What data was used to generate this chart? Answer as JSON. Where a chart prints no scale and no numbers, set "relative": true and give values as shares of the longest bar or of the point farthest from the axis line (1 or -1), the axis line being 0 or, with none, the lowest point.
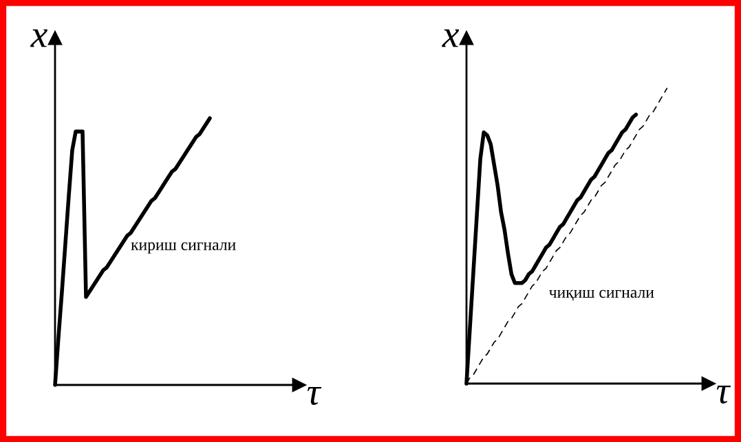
{
  "chart_data": [
    {
      "type": "line",
      "relative": true,
      "xlabel": "τ",
      "ylabel": "x",
      "categories": [
        null,
        null,
        null,
        null,
        null,
        null,
        null,
        null,
        null,
        null,
        null,
        null,
        null,
        null,
        null,
        null,
        null,
        null,
        null,
        null,
        null,
        null,
        null,
        null,
        null,
        null,
        null,
        null,
        null,
        null,
        null,
        null,
        null,
        null,
        null,
        null,
        null,
        null,
        null,
        null,
        null,
        null,
        null,
        null,
        null,
        null,
        null,
        null,
        null,
        null,
        null,
        null,
        null,
        null,
        null,
        null,
        null,
        null,
        null,
        null,
        null,
        null,
        null,
        null,
        null,
        null,
        null,
        null,
        null,
        null,
        null,
        null
      ],
      "series": [
        {
          "name": "кириш сигнали",
          "color": "#000000",
          "line_style": "solid",
          "values": [
            0,
            0.18,
            0.35,
            0.53,
            0.71,
            0.88,
            0.95,
            0.95,
            0.95,
            0.33,
            0.35,
            0.37,
            0.39,
            0.41,
            0.43,
            0.44,
            0.46,
            0.48,
            0.5,
            0.52,
            0.54,
            0.56,
            0.57,
            0.59,
            0.61,
            0.63,
            0.65,
            0.67,
            0.69,
            0.7,
            0.72,
            0.74,
            0.76,
            0.78,
            0.8,
            0.81,
            0.83,
            0.85,
            0.87,
            0.89,
            0.91,
            0.93,
            0.94,
            0.96,
            0.98,
            1,
            null,
            null,
            null,
            null,
            null,
            null,
            null,
            null,
            null,
            null,
            null,
            null,
            null,
            null,
            null,
            null,
            null,
            null,
            null,
            null,
            null,
            null,
            null,
            null,
            null,
            null
          ]
        }
      ]
    },
    {
      "type": "line",
      "relative": true,
      "xlabel": "τ",
      "ylabel": "x",
      "categories": [
        null,
        null,
        null,
        null,
        null,
        null,
        null,
        null,
        null,
        null,
        null,
        null,
        null,
        null,
        null,
        null,
        null,
        null,
        null,
        null,
        null,
        null,
        null,
        null,
        null,
        null,
        null,
        null,
        null,
        null,
        null,
        null,
        null,
        null,
        null,
        null,
        null,
        null,
        null,
        null,
        null,
        null,
        null,
        null,
        null,
        null,
        null,
        null,
        null,
        null,
        null,
        null,
        null,
        null,
        null,
        null,
        null,
        null,
        null,
        null,
        null,
        null,
        null,
        null,
        null,
        null,
        null,
        null,
        null,
        null,
        null
      ],
      "series": [
        {
          "name": "чиқиш сигнали",
          "color": "#000000",
          "line_style": "solid",
          "values": [
            0,
            0.19,
            0.38,
            0.57,
            0.76,
            0.85,
            0.84,
            0.81,
            0.74,
            0.67,
            0.58,
            0.52,
            0.44,
            0.37,
            0.34,
            0.34,
            0.34,
            0.35,
            0.37,
            0.38,
            0.4,
            0.42,
            0.44,
            0.46,
            0.47,
            0.49,
            0.51,
            0.53,
            0.54,
            0.56,
            0.58,
            0.6,
            0.62,
            0.63,
            0.65,
            0.67,
            0.69,
            0.7,
            0.72,
            0.74,
            0.76,
            0.78,
            0.79,
            0.81,
            0.83,
            0.85,
            0.86,
            0.88,
            0.9,
            0.91,
            null,
            null,
            null,
            null,
            null,
            null,
            null,
            null,
            null,
            null,
            null,
            null,
            null,
            null,
            null,
            null,
            null,
            null,
            null,
            null,
            null
          ]
        },
        {
          "color": "#000000",
          "line_style": "dashed",
          "values": [
            0,
            0.02,
            0.03,
            0.05,
            0.07,
            0.09,
            0.1,
            0.12,
            0.14,
            0.15,
            0.17,
            0.19,
            0.21,
            0.22,
            0.24,
            0.26,
            0.27,
            0.29,
            0.31,
            0.33,
            0.34,
            0.36,
            0.38,
            0.39,
            0.41,
            0.43,
            0.45,
            0.46,
            0.48,
            0.5,
            0.51,
            0.53,
            0.55,
            0.57,
            0.58,
            0.6,
            0.62,
            0.63,
            0.65,
            0.67,
            0.68,
            0.7,
            0.72,
            0.74,
            0.75,
            0.77,
            0.79,
            0.8,
            0.82,
            0.84,
            0.86,
            0.87,
            0.89,
            0.91,
            0.92,
            0.94,
            0.96,
            0.98,
            1,
            null,
            null,
            null,
            null,
            null,
            null,
            null,
            null,
            null,
            null,
            null,
            null
          ]
        }
      ]
    }
  ]
}
